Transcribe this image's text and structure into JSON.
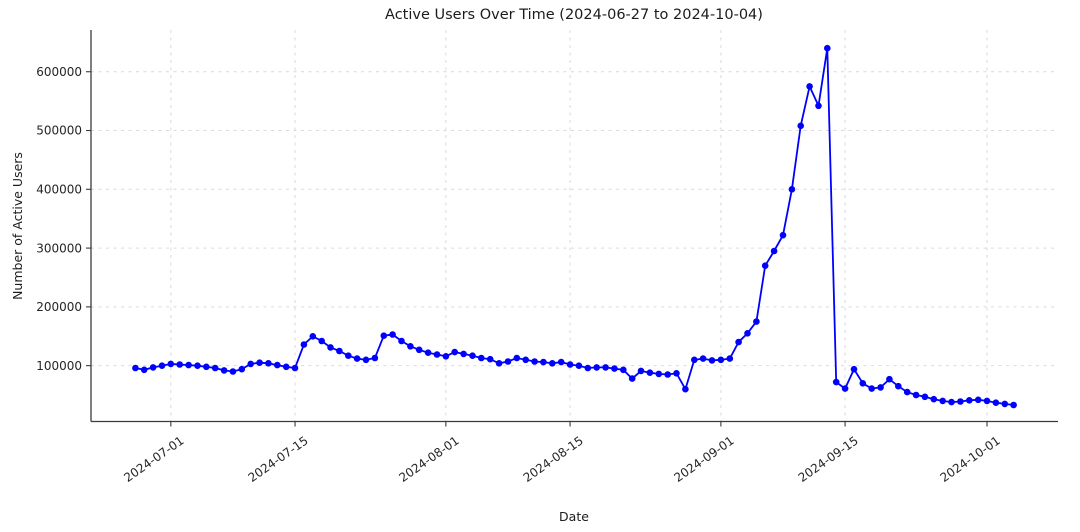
{
  "chart_data": {
    "type": "line",
    "title": "Active Users Over Time (2024-06-27 to 2024-10-04)",
    "xlabel": "Date",
    "ylabel": "Number of Active Users",
    "series_name": "Active Users",
    "legend": "none",
    "grid": true,
    "line_color": "#0000ff",
    "marker": "circle",
    "grid_color": "#d9d9d9",
    "axis_color": "#3b3b3b",
    "ylim": [
      5000,
      671000
    ],
    "xlim": [
      "2024-06-22",
      "2024-10-09"
    ],
    "y_ticks": [
      100000,
      200000,
      300000,
      400000,
      500000,
      600000
    ],
    "y_tick_labels": [
      "100000",
      "200000",
      "300000",
      "400000",
      "500000",
      "600000"
    ],
    "x_tick_labels": [
      "2024-07-01",
      "2024-07-15",
      "2024-08-01",
      "2024-08-15",
      "2024-09-01",
      "2024-09-15",
      "2024-10-01"
    ],
    "x": [
      "2024-06-27",
      "2024-06-28",
      "2024-06-29",
      "2024-06-30",
      "2024-07-01",
      "2024-07-02",
      "2024-07-03",
      "2024-07-04",
      "2024-07-05",
      "2024-07-06",
      "2024-07-07",
      "2024-07-08",
      "2024-07-09",
      "2024-07-10",
      "2024-07-11",
      "2024-07-12",
      "2024-07-13",
      "2024-07-14",
      "2024-07-15",
      "2024-07-16",
      "2024-07-17",
      "2024-07-18",
      "2024-07-19",
      "2024-07-20",
      "2024-07-21",
      "2024-07-22",
      "2024-07-23",
      "2024-07-24",
      "2024-07-25",
      "2024-07-26",
      "2024-07-27",
      "2024-07-28",
      "2024-07-29",
      "2024-07-30",
      "2024-07-31",
      "2024-08-01",
      "2024-08-02",
      "2024-08-03",
      "2024-08-04",
      "2024-08-05",
      "2024-08-06",
      "2024-08-07",
      "2024-08-08",
      "2024-08-09",
      "2024-08-10",
      "2024-08-11",
      "2024-08-12",
      "2024-08-13",
      "2024-08-14",
      "2024-08-15",
      "2024-08-16",
      "2024-08-17",
      "2024-08-18",
      "2024-08-19",
      "2024-08-20",
      "2024-08-21",
      "2024-08-22",
      "2024-08-23",
      "2024-08-24",
      "2024-08-25",
      "2024-08-26",
      "2024-08-27",
      "2024-08-28",
      "2024-08-29",
      "2024-08-30",
      "2024-08-31",
      "2024-09-01",
      "2024-09-02",
      "2024-09-03",
      "2024-09-04",
      "2024-09-05",
      "2024-09-06",
      "2024-09-07",
      "2024-09-08",
      "2024-09-09",
      "2024-09-10",
      "2024-09-11",
      "2024-09-12",
      "2024-09-13",
      "2024-09-14",
      "2024-09-15",
      "2024-09-16",
      "2024-09-17",
      "2024-09-18",
      "2024-09-19",
      "2024-09-20",
      "2024-09-21",
      "2024-09-22",
      "2024-09-23",
      "2024-09-24",
      "2024-09-25",
      "2024-09-26",
      "2024-09-27",
      "2024-09-28",
      "2024-09-29",
      "2024-09-30",
      "2024-10-01",
      "2024-10-02",
      "2024-10-03",
      "2024-10-04"
    ],
    "y": [
      96000,
      93000,
      97000,
      100000,
      103000,
      102000,
      101000,
      100000,
      98000,
      96000,
      92000,
      90000,
      94000,
      103000,
      105000,
      104000,
      101000,
      98000,
      96000,
      136000,
      150000,
      142000,
      131000,
      125000,
      117000,
      112000,
      110000,
      113000,
      151000,
      153000,
      142000,
      133000,
      127000,
      122000,
      119000,
      116000,
      123000,
      120000,
      117000,
      113000,
      111000,
      104000,
      107000,
      113000,
      110000,
      107000,
      106000,
      104000,
      106000,
      102000,
      100000,
      96000,
      97000,
      97000,
      95000,
      93000,
      78000,
      91000,
      88000,
      86000,
      85000,
      87000,
      60000,
      110000,
      112000,
      109000,
      110000,
      112000,
      140000,
      155000,
      175000,
      270000,
      295000,
      322000,
      400000,
      508000,
      575000,
      542000,
      640000,
      72000,
      61000,
      94000,
      70000,
      61000,
      63000,
      77000,
      65000,
      55000,
      50000,
      47000,
      43000,
      40000,
      38000,
      39000,
      41000,
      42000,
      40000,
      37000,
      35000,
      33000
    ]
  }
}
